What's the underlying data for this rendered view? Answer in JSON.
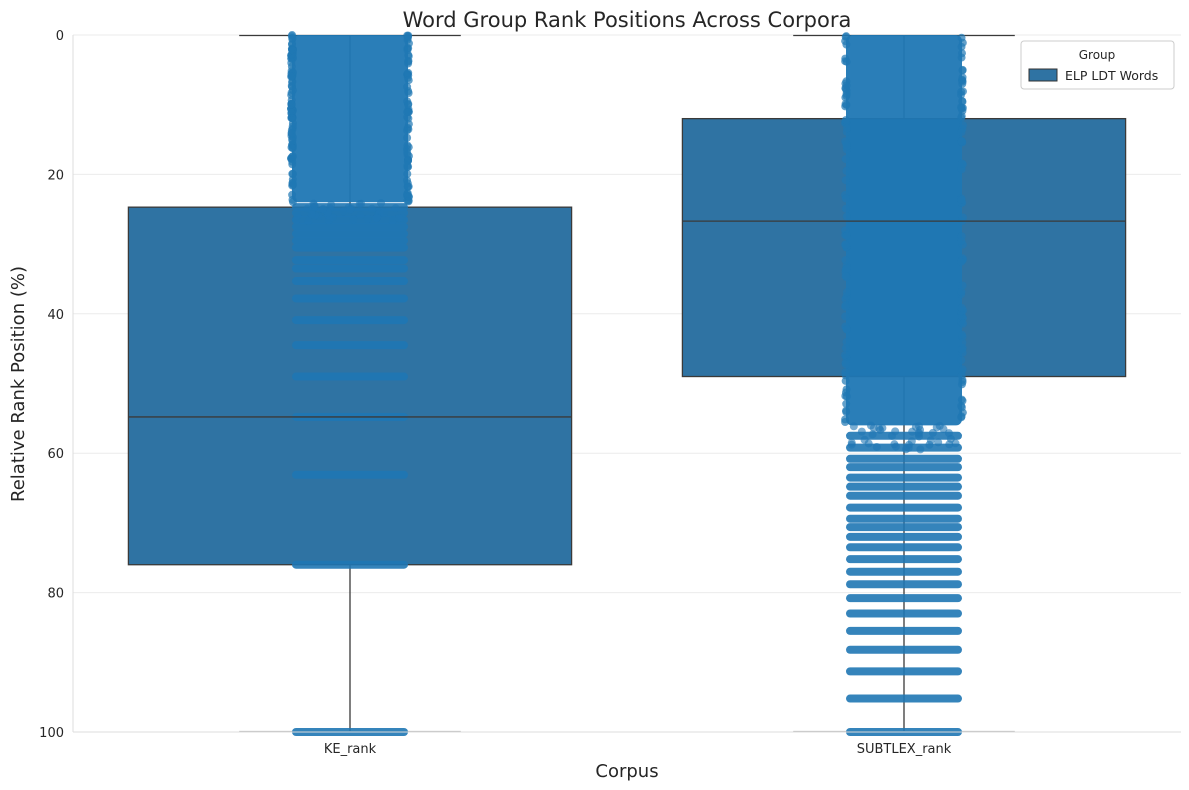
{
  "chart_data": {
    "type": "box",
    "title": "Word Group Rank Positions Across Corpora",
    "xlabel": "Corpus",
    "ylabel": "Relative Rank Position (%)",
    "categories": [
      "KE_rank",
      "SUBTLEX_rank"
    ],
    "ylim": [
      0,
      100
    ],
    "y_inverted": true,
    "yticks": [
      0,
      20,
      40,
      60,
      80,
      100
    ],
    "grid": "horizontal",
    "legend": {
      "title": "Group",
      "position": "top-right",
      "entries": [
        "ELP LDT Words"
      ]
    },
    "series": [
      {
        "name": "ELP LDT Words",
        "color": "#2f73a3",
        "boxes": [
          {
            "category": "KE_rank",
            "whisker_low": 0,
            "q1": 24.7,
            "median": 54.8,
            "q3": 76.0,
            "whisker_high": 100
          },
          {
            "category": "SUBTLEX_rank",
            "whisker_low": 0,
            "q1": 12.0,
            "median": 26.7,
            "q3": 49.0,
            "whisker_high": 100
          }
        ]
      }
    ],
    "strip_points": {
      "color": "#1f77b4",
      "KE_rank": {
        "dense_range": [
          0,
          24
        ],
        "levels": [
          24.7,
          25.5,
          26.5,
          27.5,
          28.5,
          29.5,
          30.5,
          32.3,
          33.5,
          35.3,
          37.8,
          40.9,
          44.5,
          49.0,
          54.8,
          63.1,
          76.0,
          100
        ]
      },
      "SUBTLEX_rank": {
        "dense_range": [
          0,
          56
        ],
        "levels": [
          57.5,
          59.2,
          60.8,
          62.0,
          63.5,
          64.8,
          66.1,
          67.8,
          69.4,
          70.6,
          72.0,
          73.5,
          75.2,
          77.0,
          78.8,
          80.8,
          83.0,
          85.5,
          88.2,
          91.3,
          95.2,
          100
        ]
      }
    }
  }
}
